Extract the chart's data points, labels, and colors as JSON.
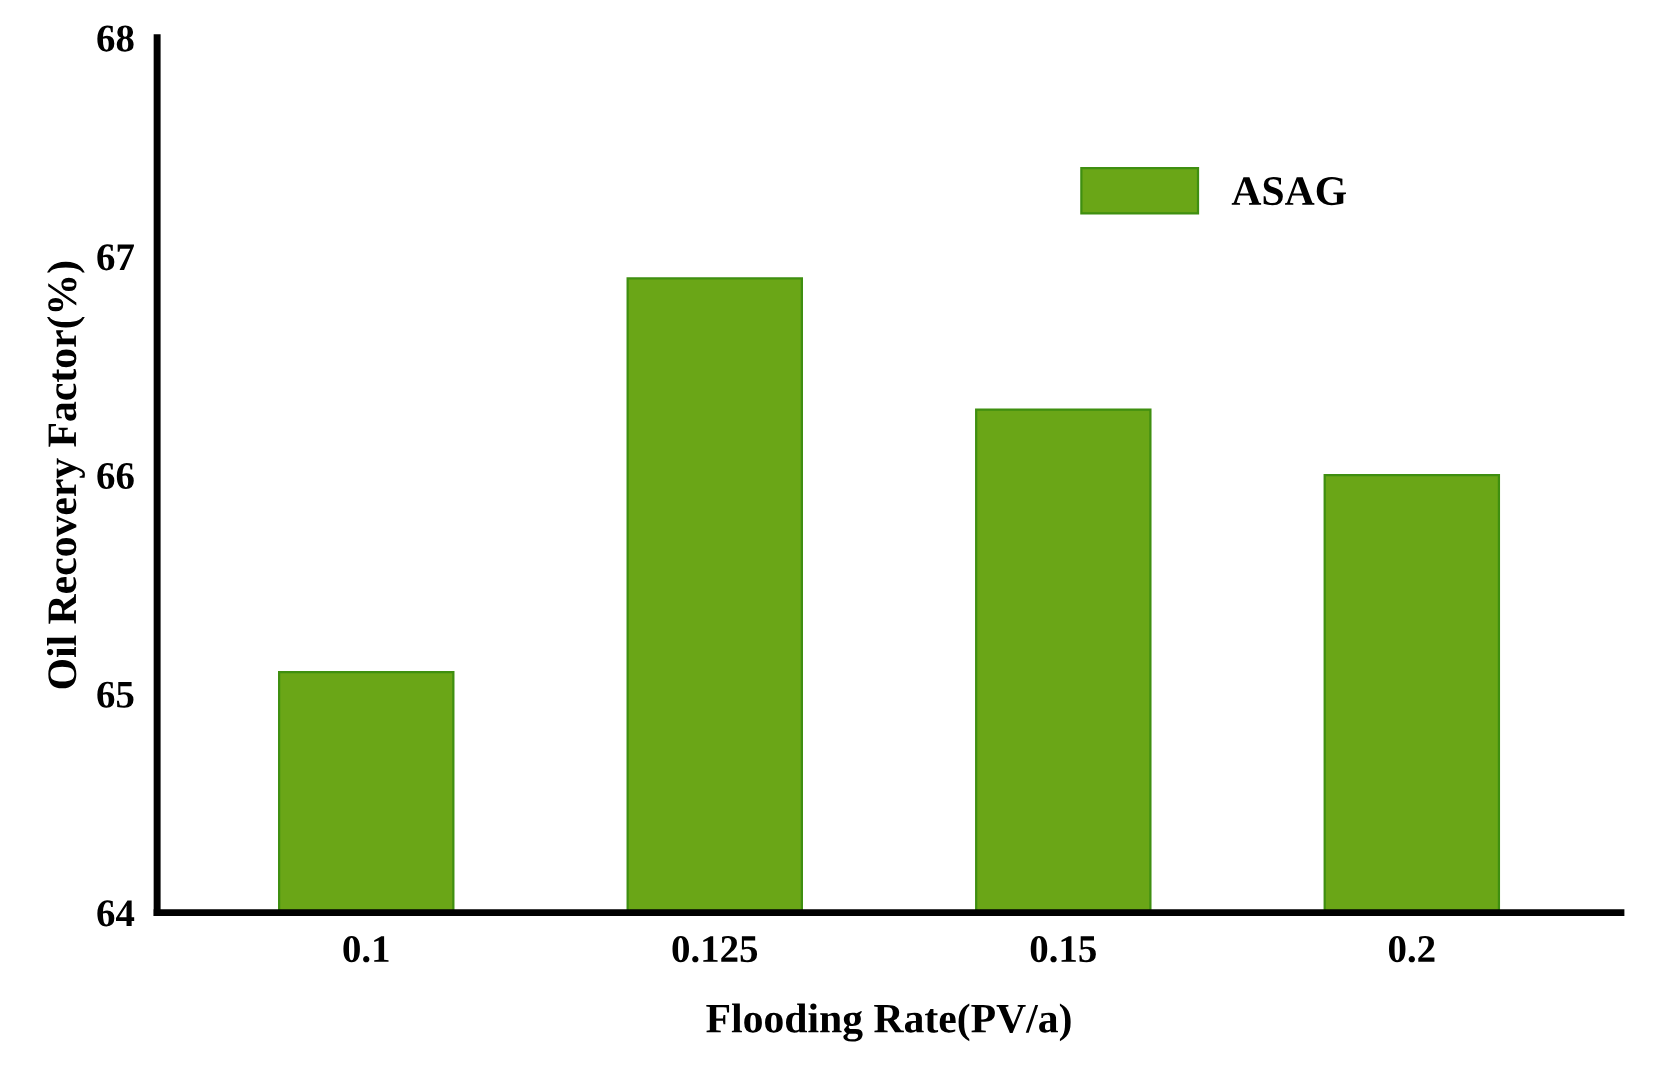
{
  "chart_data": {
    "type": "bar",
    "xlabel": "Flooding Rate(PV/a)",
    "ylabel": "Oil Recovery Factor(%)",
    "categories": [
      "0.1",
      "0.125",
      "0.15",
      "0.2"
    ],
    "series": [
      {
        "name": "ASAG",
        "color": "#6aa617",
        "values": [
          65.1,
          66.9,
          66.3,
          66.0
        ]
      }
    ],
    "ylim": [
      64,
      68
    ],
    "yticks": [
      64,
      65,
      66,
      67,
      68
    ],
    "grid": false,
    "legend": "top right"
  }
}
